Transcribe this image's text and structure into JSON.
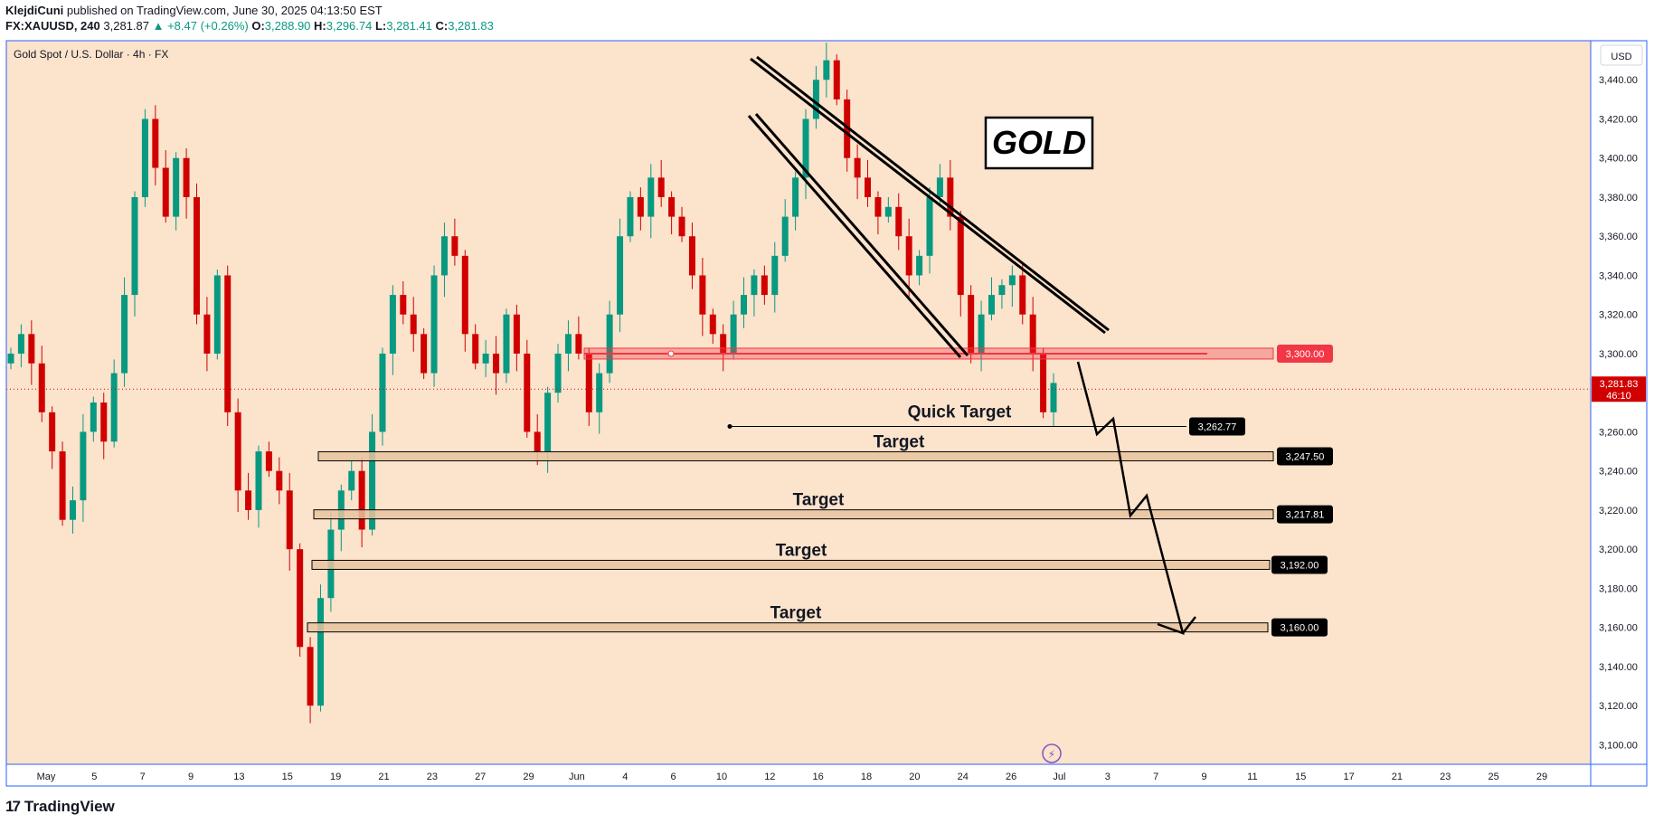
{
  "header": {
    "author": "KlejdiCuni",
    "published": "published on TradingView.com, June 30, 2025 04:13:50 EST",
    "symbol": "FX:XAUUSD, 240",
    "last": "3,281.87",
    "change": "▲ +8.47 (+0.26%)",
    "o_label": "O:",
    "o_value": "3,288.90",
    "h_label": "H:",
    "h_value": "3,296.74",
    "l_label": "L:",
    "l_value": "3,281.41",
    "c_label": "C:",
    "c_value": "3,281.83"
  },
  "chart_title": "Gold Spot / U.S. Dollar · 4h · FX",
  "currency": "USD",
  "gold_label": "GOLD",
  "footer_brand": "TradingView",
  "colors": {
    "background": "#fbe3cc",
    "bull": "#089981",
    "bear": "#d10000",
    "resistance": "#f23645",
    "target_zone": "#e8c4a0"
  },
  "chart_data": {
    "type": "candlestick",
    "ylim": [
      3090,
      3460
    ],
    "y_ticks": [
      3100,
      3120,
      3140,
      3160,
      3180,
      3200,
      3220,
      3240,
      3260,
      3280,
      3300,
      3320,
      3340,
      3360,
      3380,
      3400,
      3420,
      3440
    ],
    "y_tick_labels": [
      "3,100.00",
      "3,120.00",
      "3,140.00",
      "3,160.00",
      "3,180.00",
      "3,200.00",
      "3,220.00",
      "3,240.00",
      "3,260.00",
      "3,280.00",
      "3,300.00",
      "3,320.00",
      "3,340.00",
      "3,360.00",
      "3,380.00",
      "3,400.00",
      "3,420.00",
      "3,440.00"
    ],
    "x_tick_labels": [
      "May",
      "5",
      "7",
      "9",
      "13",
      "15",
      "19",
      "21",
      "23",
      "27",
      "29",
      "Jun",
      "4",
      "6",
      "10",
      "12",
      "16",
      "18",
      "20",
      "24",
      "26",
      "Jul",
      "3",
      "7",
      "9",
      "11",
      "15",
      "17",
      "21",
      "23",
      "25",
      "29"
    ],
    "close_series": [
      3300,
      3310,
      3295,
      3270,
      3250,
      3215,
      3225,
      3260,
      3275,
      3255,
      3290,
      3330,
      3380,
      3420,
      3395,
      3370,
      3400,
      3380,
      3320,
      3300,
      3340,
      3270,
      3230,
      3220,
      3250,
      3240,
      3230,
      3200,
      3150,
      3120,
      3175,
      3210,
      3230,
      3240,
      3210,
      3260,
      3300,
      3330,
      3320,
      3310,
      3290,
      3340,
      3360,
      3350,
      3310,
      3295,
      3300,
      3290,
      3320,
      3300,
      3260,
      3250,
      3280,
      3300,
      3310,
      3300,
      3270,
      3290,
      3320,
      3360,
      3380,
      3370,
      3390,
      3380,
      3370,
      3360,
      3340,
      3320,
      3310,
      3300,
      3320,
      3330,
      3340,
      3330,
      3350,
      3370,
      3390,
      3420,
      3440,
      3450,
      3430,
      3400,
      3390,
      3380,
      3370,
      3375,
      3360,
      3340,
      3350,
      3380,
      3390,
      3370,
      3330,
      3300,
      3320,
      3330,
      3335,
      3340,
      3320,
      3300,
      3270,
      3285
    ],
    "current_price": "3,281.83",
    "countdown": "46:10",
    "levels": [
      {
        "name": "resistance",
        "value": 3300.0,
        "label": "3,300.00"
      },
      {
        "name": "quick-target",
        "value": 3262.77,
        "label": "3,262.77",
        "text": "Quick Target"
      },
      {
        "name": "target-1",
        "value": 3247.5,
        "label": "3,247.50",
        "text": "Target"
      },
      {
        "name": "target-2",
        "value": 3217.81,
        "label": "3,217.81",
        "text": "Target"
      },
      {
        "name": "target-3",
        "value": 3192.0,
        "label": "3,192.00",
        "text": "Target"
      },
      {
        "name": "target-4",
        "value": 3160.0,
        "label": "3,160.00",
        "text": "Target"
      }
    ]
  }
}
